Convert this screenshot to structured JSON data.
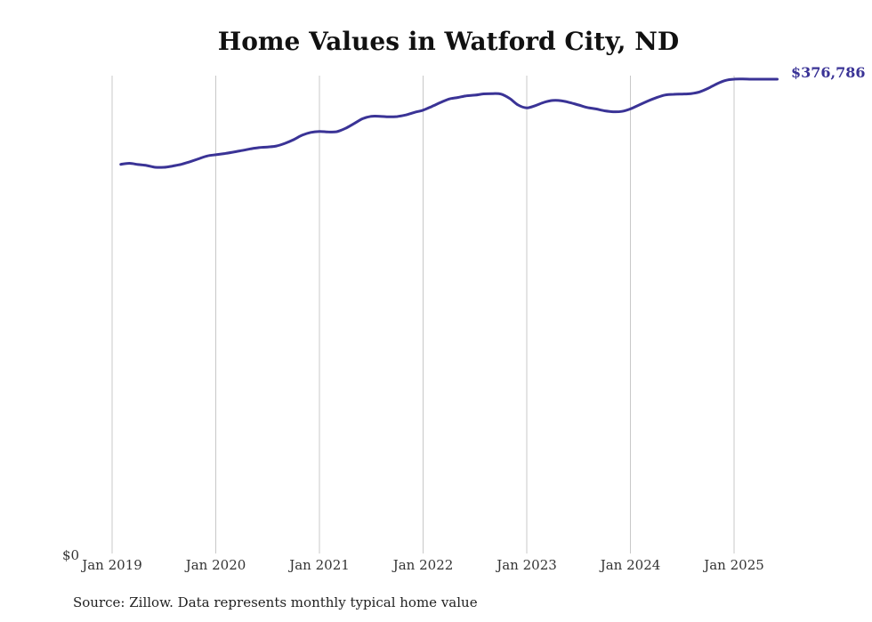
{
  "colors": {
    "line": "#3a3396",
    "gridline": "#c8c8c8",
    "end_label": "#3a3396"
  },
  "chart_data": {
    "type": "line",
    "title": "Home Values in Watford City, ND",
    "xlabel": "",
    "ylabel": "",
    "x_ticks": [
      "Jan 2019",
      "Jan 2020",
      "Jan 2021",
      "Jan 2022",
      "Jan 2023",
      "Jan 2024",
      "Jan 2025"
    ],
    "y_ticks": [
      "$0"
    ],
    "ylim": [
      0,
      380000
    ],
    "grid": "vertical",
    "end_label": "$376,786",
    "series": [
      {
        "x": [
          "2019-02",
          "2019-03",
          "2019-04",
          "2019-05",
          "2019-06",
          "2019-07",
          "2019-08",
          "2019-09",
          "2019-10",
          "2019-11",
          "2019-12",
          "2020-01",
          "2020-02",
          "2020-03",
          "2020-04",
          "2020-05",
          "2020-06",
          "2020-07",
          "2020-08",
          "2020-09",
          "2020-10",
          "2020-11",
          "2020-12",
          "2021-01",
          "2021-02",
          "2021-03",
          "2021-04",
          "2021-05",
          "2021-06",
          "2021-07",
          "2021-08",
          "2021-09",
          "2021-10",
          "2021-11",
          "2021-12",
          "2022-01",
          "2022-02",
          "2022-03",
          "2022-04",
          "2022-05",
          "2022-06",
          "2022-07",
          "2022-08",
          "2022-09",
          "2022-10",
          "2022-11",
          "2022-12",
          "2023-01",
          "2023-02",
          "2023-03",
          "2023-04",
          "2023-05",
          "2023-06",
          "2023-07",
          "2023-08",
          "2023-09",
          "2023-10",
          "2023-11",
          "2023-12",
          "2024-01",
          "2024-02",
          "2024-03",
          "2024-04",
          "2024-05",
          "2024-06",
          "2024-07",
          "2024-08",
          "2024-09",
          "2024-10",
          "2024-11",
          "2024-12",
          "2025-01",
          "2025-02",
          "2025-03",
          "2025-04",
          "2025-05",
          "2025-06"
        ],
        "y": [
          309100,
          310000,
          309000,
          308200,
          306800,
          306800,
          307800,
          309100,
          311200,
          313500,
          315800,
          316800,
          317700,
          318800,
          320100,
          321400,
          322400,
          322900,
          323700,
          325800,
          328700,
          332300,
          334500,
          335300,
          334900,
          335100,
          337700,
          341500,
          345400,
          347300,
          347300,
          346900,
          347100,
          348400,
          350400,
          352200,
          355100,
          358200,
          361000,
          362200,
          363600,
          364100,
          365100,
          365300,
          365000,
          361600,
          356300,
          354000,
          355800,
          358400,
          359900,
          359700,
          358200,
          356300,
          354300,
          353200,
          351700,
          350900,
          351200,
          353200,
          356300,
          359400,
          362100,
          364200,
          364800,
          365000,
          365300,
          366700,
          369500,
          373100,
          375800,
          376800,
          376900,
          376786,
          376786,
          376786,
          376786
        ]
      }
    ]
  },
  "source": "Source: Zillow. Data represents monthly typical home value"
}
